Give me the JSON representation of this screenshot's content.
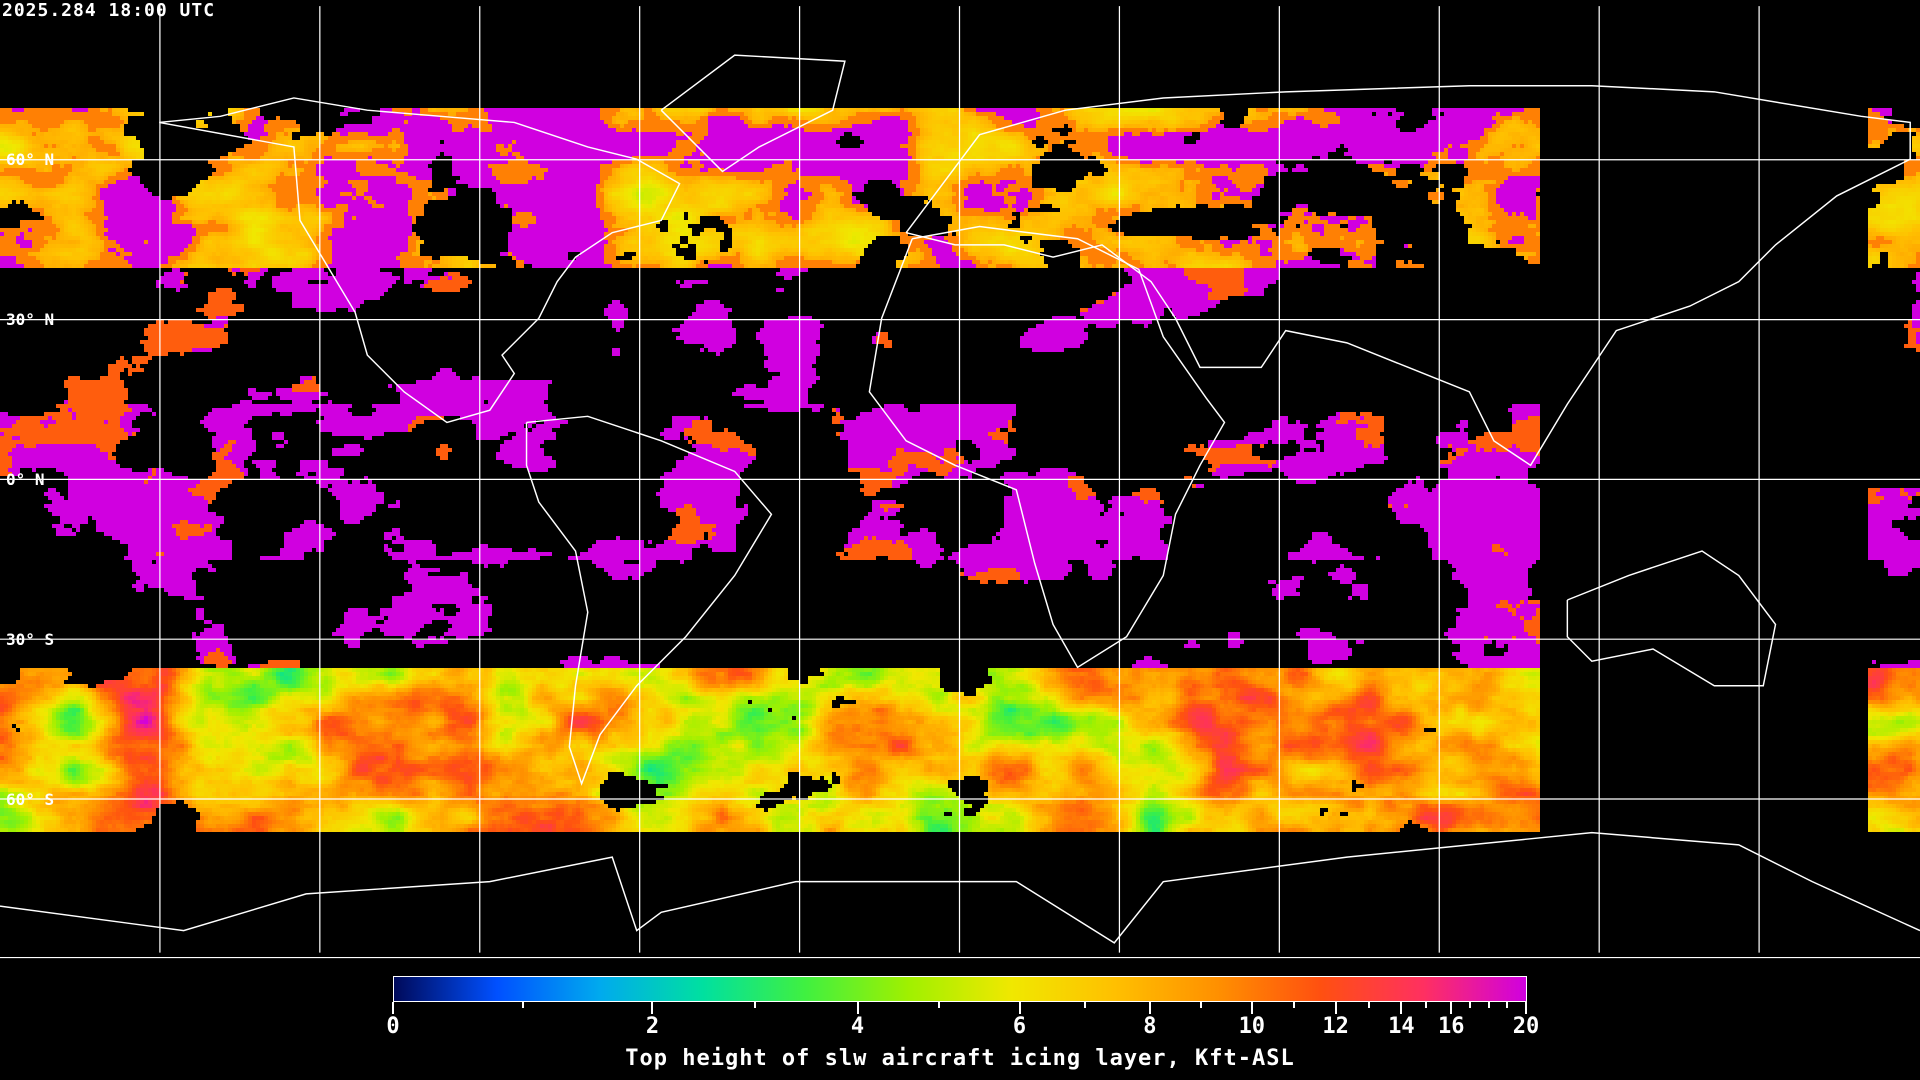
{
  "timestamp": "2025.284 18:00 UTC",
  "latitude_labels": [
    "60° N",
    "30° N",
    "0° N",
    "30° S",
    "60° S"
  ],
  "colorbar": {
    "title": "Top height of slw aircraft icing layer, Kft-ASL",
    "tick_labels": [
      "0",
      "2",
      "4",
      "6",
      "8",
      "10",
      "12",
      "14",
      "16",
      "20"
    ],
    "colormap": [
      "#000a5a",
      "#0050ff",
      "#00aaee",
      "#00e0a0",
      "#40f040",
      "#a0f000",
      "#f0e800",
      "#ffc000",
      "#ff9000",
      "#ff5010",
      "#ff3060",
      "#d000e0"
    ],
    "range": [
      0,
      20
    ]
  },
  "colors": {
    "background": "#000000",
    "coastline": "#ffffff",
    "grid": "#ffffff",
    "no_icing": "#000000"
  }
}
